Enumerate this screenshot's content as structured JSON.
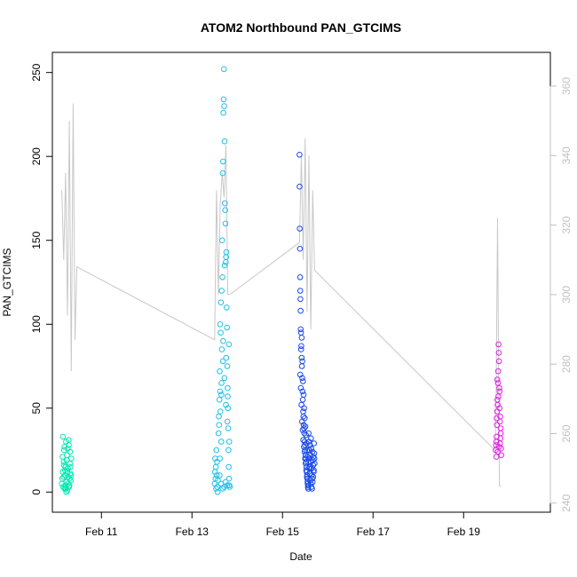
{
  "chart_data": {
    "type": "scatter",
    "title": "ATOM2 Northbound PAN_GTCIMS",
    "xlabel": "Date",
    "ylabel": "PAN_GTCIMS",
    "xlim": [
      "2010-02-09T22:00",
      "2010-02-20T22:00"
    ],
    "ylim": [
      -12,
      262
    ],
    "x_ticks": [
      {
        "label": "Feb 11",
        "value": "2010-02-11T00:00"
      },
      {
        "label": "Feb 13",
        "value": "2010-02-13T00:00"
      },
      {
        "label": "Feb 15",
        "value": "2010-02-15T00:00"
      },
      {
        "label": "Feb 17",
        "value": "2010-02-17T00:00"
      },
      {
        "label": "Feb 19",
        "value": "2010-02-19T00:00"
      }
    ],
    "y_ticks": [
      0,
      50,
      100,
      150,
      200,
      250
    ],
    "right_axis": {
      "ylim": [
        237.4,
        369.7
      ],
      "ticks": [
        240,
        260,
        280,
        300,
        320,
        340,
        360
      ],
      "color": "#c0c0c0"
    },
    "grid": false,
    "legend": "none",
    "series": [
      {
        "type": "scatter",
        "marker": "open-circle",
        "color": "#00e8b0",
        "x_range": [
          "2010-02-10T03:00",
          "2010-02-10T08:00"
        ],
        "points": [
          [
            0.0,
            5
          ],
          [
            0.05,
            8
          ],
          [
            0.1,
            12
          ],
          [
            0.15,
            3
          ],
          [
            0.2,
            18
          ],
          [
            0.25,
            25
          ],
          [
            0.3,
            2
          ],
          [
            0.35,
            10
          ],
          [
            0.4,
            15
          ],
          [
            0.45,
            30
          ],
          [
            0.5,
            6
          ],
          [
            0.55,
            22
          ],
          [
            0.6,
            1
          ],
          [
            0.65,
            14
          ],
          [
            0.7,
            9
          ],
          [
            0.75,
            28
          ],
          [
            0.8,
            4
          ],
          [
            0.85,
            17
          ],
          [
            0.9,
            11
          ],
          [
            0.95,
            7
          ],
          [
            1.0,
            20
          ],
          [
            0.12,
            33
          ],
          [
            0.48,
            0
          ],
          [
            0.62,
            26
          ],
          [
            0.33,
            13
          ],
          [
            0.78,
            3
          ],
          [
            0.88,
            24
          ],
          [
            0.22,
            16
          ],
          [
            0.52,
            19
          ],
          [
            0.68,
            5
          ],
          [
            0.18,
            9
          ],
          [
            0.42,
            2
          ],
          [
            0.58,
            12
          ],
          [
            0.72,
            31
          ],
          [
            0.92,
            15
          ],
          [
            0.08,
            21
          ],
          [
            0.28,
            27
          ],
          [
            0.82,
            8
          ],
          [
            0.38,
            4
          ],
          [
            0.98,
            10
          ]
        ]
      },
      {
        "type": "scatter",
        "marker": "open-circle",
        "color": "#20c0e8",
        "x_range": [
          "2010-02-13T12:00",
          "2010-02-13T20:00"
        ],
        "points": [
          [
            0.0,
            5
          ],
          [
            0.02,
            12
          ],
          [
            0.04,
            20
          ],
          [
            0.06,
            8
          ],
          [
            0.08,
            15
          ],
          [
            0.1,
            2
          ],
          [
            0.12,
            25
          ],
          [
            0.14,
            10
          ],
          [
            0.16,
            18
          ],
          [
            0.18,
            3
          ],
          [
            0.2,
            0
          ],
          [
            0.22,
            7
          ],
          [
            0.3,
            40
          ],
          [
            0.32,
            55
          ],
          [
            0.34,
            72
          ],
          [
            0.36,
            60
          ],
          [
            0.38,
            48
          ],
          [
            0.4,
            95
          ],
          [
            0.42,
            113
          ],
          [
            0.44,
            30
          ],
          [
            0.46,
            65
          ],
          [
            0.48,
            85
          ],
          [
            0.5,
            150
          ],
          [
            0.52,
            128
          ],
          [
            0.54,
            190
          ],
          [
            0.56,
            197
          ],
          [
            0.58,
            226
          ],
          [
            0.6,
            234
          ],
          [
            0.62,
            252
          ],
          [
            0.64,
            230
          ],
          [
            0.66,
            209
          ],
          [
            0.68,
            172
          ],
          [
            0.7,
            168
          ],
          [
            0.72,
            160
          ],
          [
            0.74,
            137
          ],
          [
            0.76,
            140
          ],
          [
            0.78,
            143
          ],
          [
            0.8,
            110
          ],
          [
            0.82,
            98
          ],
          [
            0.84,
            75
          ],
          [
            0.86,
            62
          ],
          [
            0.88,
            50
          ],
          [
            0.9,
            38
          ],
          [
            0.92,
            25
          ],
          [
            0.94,
            15
          ],
          [
            0.96,
            8
          ],
          [
            0.98,
            4
          ],
          [
            1.0,
            3
          ],
          [
            0.26,
            35
          ],
          [
            0.28,
            45
          ],
          [
            0.35,
            20
          ],
          [
            0.45,
            58
          ],
          [
            0.55,
            78
          ],
          [
            0.65,
            68
          ],
          [
            0.75,
            52
          ],
          [
            0.85,
            42
          ],
          [
            0.95,
            88
          ],
          [
            0.37,
            100
          ],
          [
            0.47,
            120
          ],
          [
            0.57,
            90
          ],
          [
            0.67,
            135
          ],
          [
            0.77,
            80
          ],
          [
            0.87,
            57
          ],
          [
            0.97,
            30
          ],
          [
            0.33,
            10
          ],
          [
            0.43,
            5
          ],
          [
            0.53,
            2
          ],
          [
            0.63,
            3
          ],
          [
            0.73,
            6
          ],
          [
            0.83,
            4
          ]
        ]
      },
      {
        "type": "scatter",
        "marker": "open-circle",
        "color": "#1848e8",
        "x_range": [
          "2010-02-15T09:00",
          "2010-02-15T17:00"
        ],
        "points": [
          [
            0.0,
            201
          ],
          [
            0.01,
            182
          ],
          [
            0.02,
            157
          ],
          [
            0.03,
            145
          ],
          [
            0.04,
            128
          ],
          [
            0.05,
            120
          ],
          [
            0.06,
            115
          ],
          [
            0.07,
            108
          ],
          [
            0.08,
            97
          ],
          [
            0.1,
            95
          ],
          [
            0.12,
            87
          ],
          [
            0.14,
            80
          ],
          [
            0.16,
            75
          ],
          [
            0.18,
            68
          ],
          [
            0.2,
            60
          ],
          [
            0.22,
            55
          ],
          [
            0.24,
            48
          ],
          [
            0.26,
            45
          ],
          [
            0.28,
            40
          ],
          [
            0.3,
            38
          ],
          [
            0.32,
            35
          ],
          [
            0.34,
            30
          ],
          [
            0.36,
            28
          ],
          [
            0.38,
            25
          ],
          [
            0.4,
            22
          ],
          [
            0.42,
            20
          ],
          [
            0.44,
            18
          ],
          [
            0.46,
            15
          ],
          [
            0.48,
            12
          ],
          [
            0.5,
            10
          ],
          [
            0.52,
            8
          ],
          [
            0.54,
            5
          ],
          [
            0.56,
            3
          ],
          [
            0.58,
            2
          ],
          [
            0.6,
            35
          ],
          [
            0.62,
            30
          ],
          [
            0.64,
            25
          ],
          [
            0.66,
            20
          ],
          [
            0.68,
            15
          ],
          [
            0.7,
            28
          ],
          [
            0.72,
            22
          ],
          [
            0.74,
            18
          ],
          [
            0.76,
            32
          ],
          [
            0.78,
            26
          ],
          [
            0.8,
            14
          ],
          [
            0.82,
            10
          ],
          [
            0.84,
            8
          ],
          [
            0.86,
            24
          ],
          [
            0.88,
            19
          ],
          [
            0.9,
            16
          ],
          [
            0.92,
            21
          ],
          [
            0.94,
            12
          ],
          [
            0.96,
            29
          ],
          [
            0.98,
            23
          ],
          [
            1.0,
            17
          ],
          [
            0.05,
            70
          ],
          [
            0.09,
            62
          ],
          [
            0.13,
            52
          ],
          [
            0.17,
            42
          ],
          [
            0.21,
            37
          ],
          [
            0.25,
            31
          ],
          [
            0.29,
            27
          ],
          [
            0.33,
            24
          ],
          [
            0.37,
            20
          ],
          [
            0.41,
            17
          ],
          [
            0.45,
            13
          ],
          [
            0.49,
            9
          ],
          [
            0.53,
            6
          ],
          [
            0.57,
            4
          ],
          [
            0.11,
            85
          ],
          [
            0.15,
            92
          ],
          [
            0.19,
            78
          ],
          [
            0.23,
            66
          ],
          [
            0.27,
            58
          ],
          [
            0.31,
            50
          ],
          [
            0.35,
            44
          ],
          [
            0.39,
            39
          ],
          [
            0.43,
            34
          ],
          [
            0.47,
            29
          ],
          [
            0.51,
            25
          ],
          [
            0.55,
            21
          ],
          [
            0.59,
            18
          ],
          [
            0.63,
            14
          ],
          [
            0.67,
            11
          ],
          [
            0.71,
            7
          ],
          [
            0.75,
            5
          ],
          [
            0.79,
            3
          ],
          [
            0.83,
            2
          ],
          [
            0.87,
            6
          ],
          [
            0.91,
            9
          ],
          [
            0.95,
            13
          ],
          [
            0.99,
            20
          ]
        ]
      },
      {
        "type": "scatter",
        "marker": "open-circle",
        "color": "#e020e0",
        "x_range": [
          "2010-02-19T17:00",
          "2010-02-19T20:00"
        ],
        "points": [
          [
            0.0,
            25
          ],
          [
            0.1,
            30
          ],
          [
            0.2,
            40
          ],
          [
            0.3,
            55
          ],
          [
            0.4,
            65
          ],
          [
            0.5,
            88
          ],
          [
            0.6,
            78
          ],
          [
            0.7,
            60
          ],
          [
            0.8,
            45
          ],
          [
            0.9,
            35
          ],
          [
            1.0,
            22
          ],
          [
            0.05,
            28
          ],
          [
            0.15,
            33
          ],
          [
            0.25,
            48
          ],
          [
            0.35,
            52
          ],
          [
            0.45,
            72
          ],
          [
            0.55,
            83
          ],
          [
            0.65,
            62
          ],
          [
            0.75,
            42
          ],
          [
            0.85,
            32
          ],
          [
            0.95,
            26
          ],
          [
            0.12,
            21
          ],
          [
            0.38,
            24
          ],
          [
            0.58,
            27
          ],
          [
            0.78,
            29
          ],
          [
            0.88,
            38
          ],
          [
            0.28,
            67
          ],
          [
            0.48,
            57
          ],
          [
            0.68,
            50
          ],
          [
            0.18,
            44
          ]
        ]
      },
      {
        "type": "line",
        "color": "#c8c8c8",
        "axis": "right",
        "points": [
          [
            "2010-02-10T03:00",
            330
          ],
          [
            "2010-02-10T04:00",
            310
          ],
          [
            "2010-02-10T05:00",
            335
          ],
          [
            "2010-02-10T06:00",
            294
          ],
          [
            "2010-02-10T07:00",
            350
          ],
          [
            "2010-02-10T08:00",
            278
          ],
          [
            "2010-02-10T09:00",
            355
          ],
          [
            "2010-02-10T10:00",
            287
          ],
          [
            "2010-02-10T11:00",
            308
          ],
          [
            "2010-02-13T12:00",
            287
          ],
          [
            "2010-02-13T13:00",
            330
          ],
          [
            "2010-02-13T14:00",
            300
          ],
          [
            "2010-02-13T15:00",
            326
          ],
          [
            "2010-02-13T16:00",
            335
          ],
          [
            "2010-02-13T17:00",
            328
          ],
          [
            "2010-02-13T18:00",
            343
          ],
          [
            "2010-02-13T19:00",
            300
          ],
          [
            "2010-02-13T20:00",
            300
          ],
          [
            "2010-02-15T09:00",
            315
          ],
          [
            "2010-02-15T10:00",
            340
          ],
          [
            "2010-02-15T11:00",
            310
          ],
          [
            "2010-02-15T12:00",
            345
          ],
          [
            "2010-02-15T13:00",
            295
          ],
          [
            "2010-02-15T14:00",
            340
          ],
          [
            "2010-02-15T15:00",
            290
          ],
          [
            "2010-02-15T16:00",
            330
          ],
          [
            "2010-02-15T17:00",
            307
          ],
          [
            "2010-02-19T17:00",
            255
          ],
          [
            "2010-02-19T18:00",
            322
          ],
          [
            "2010-02-19T19:00",
            245
          ],
          [
            "2010-02-19T20:00",
            245
          ]
        ]
      }
    ]
  }
}
